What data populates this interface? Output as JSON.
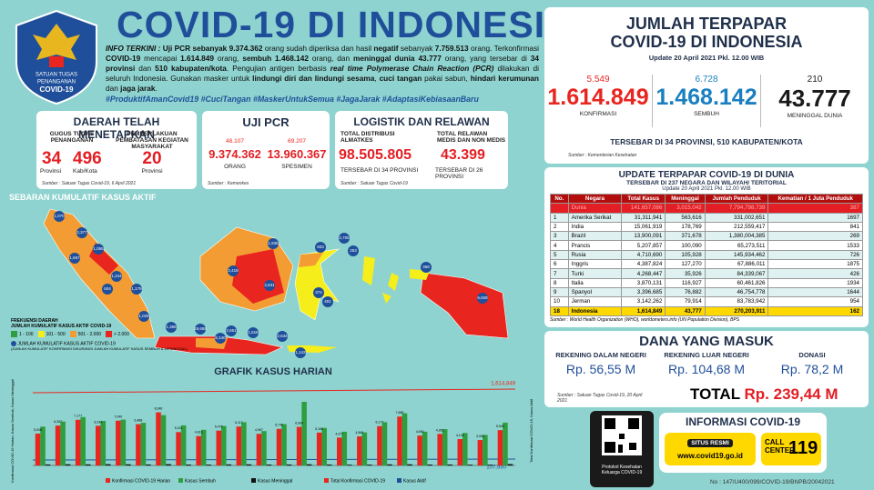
{
  "header": {
    "title": "COVID-19 DI INDONESIA",
    "logo_text": [
      "SATUAN TUGAS",
      "PENANGANAN",
      "COVID-19"
    ]
  },
  "info": {
    "segments": [
      {
        "text": "INFO TERKINI : ",
        "style": "it"
      },
      {
        "text": "Uji PCR sebanyak ",
        "style": "bold"
      },
      {
        "text": "9.374.362",
        "style": "bold"
      },
      {
        "text": " orang sudah diperiksa dan hasil ",
        "style": ""
      },
      {
        "text": "negatif",
        "style": "bold"
      },
      {
        "text": " sebanyak ",
        "style": ""
      },
      {
        "text": "7.759.513",
        "style": "bold"
      },
      {
        "text": " orang. Terkonfirmasi ",
        "style": ""
      },
      {
        "text": "COVID-19",
        "style": "bold"
      },
      {
        "text": " mencapai ",
        "style": ""
      },
      {
        "text": "1.614.849",
        "style": "bold"
      },
      {
        "text": " orang, ",
        "style": ""
      },
      {
        "text": "sembuh 1.468.142",
        "style": "bold"
      },
      {
        "text": " orang, dan ",
        "style": ""
      },
      {
        "text": "meninggal dunia 43.777",
        "style": "bold"
      },
      {
        "text": " orang, yang tersebar di ",
        "style": ""
      },
      {
        "text": "34 provinsi",
        "style": "bold"
      },
      {
        "text": " dan ",
        "style": ""
      },
      {
        "text": "510 kabupaten/kota",
        "style": "bold"
      },
      {
        "text": ". Pengujian antigen berbasis ",
        "style": ""
      },
      {
        "text": "real time Polymerase Chain Reaction (PCR)",
        "style": "it"
      },
      {
        "text": " dilakukan di seluruh Indonesia. Gunakan masker untuk ",
        "style": ""
      },
      {
        "text": "lindungi diri dan lindungi sesama",
        "style": "bold"
      },
      {
        "text": ", ",
        "style": ""
      },
      {
        "text": "cuci tangan",
        "style": "bold"
      },
      {
        "text": " pakai sabun, ",
        "style": ""
      },
      {
        "text": "hindari kerumunan",
        "style": "bold"
      },
      {
        "text": " dan ",
        "style": ""
      },
      {
        "text": "jaga jarak",
        "style": "bold"
      },
      {
        "text": ".",
        "style": ""
      }
    ]
  },
  "hashtags": "#ProduktifAmanCovid19 #CuciTangan #MaskerUntukSemua #JagaJarak #AdaptasiKebiasaanBaru",
  "daerah": {
    "title": "DAERAH TELAH MENETAPKAN",
    "gugus_label": "GUGUS TUGAS PENANGANAN",
    "gugus_prov": "34",
    "gugus_prov_unit": "Provinsi",
    "gugus_kab": "496",
    "gugus_kab_unit": "Kab/Kota",
    "ppkm_label": "PEMBERLAKUAN PEMBATASAN KEGIATAN MASYARAKAT",
    "ppkm_value": "20",
    "ppkm_unit": "Provinsi",
    "source": "Sumber : Satuan Tugas Covid-19, 6 April 2021"
  },
  "pcr": {
    "title": "UJI PCR",
    "items": [
      {
        "delta": "48.107",
        "value": "9.374.362",
        "label": "ORANG"
      },
      {
        "delta": "69.207",
        "value": "13.960.367",
        "label": "SPESIMEN"
      }
    ],
    "source": "Sumber : Kemenkes"
  },
  "logistik": {
    "title": "LOGISTIK DAN RELAWAN",
    "items": [
      {
        "label": "TOTAL DISTRIBUSI ALMATKES",
        "value": "98.505.805",
        "note": "TERSEBAR DI 34 PROVINSI"
      },
      {
        "label": "TOTAL RELAWAN MEDIS DAN NON MEDIS",
        "value": "43.399",
        "note": "TERSEBAR DI 26 PROVINSI"
      }
    ],
    "source": "Sumber : Satuan Tugas Covid-19"
  },
  "map": {
    "title": "SEBARAN KUMULATIF KASUS AKTIF",
    "labels": [
      "1,070",
      "2,377",
      "1,055",
      "1,667",
      "1,244",
      "504",
      "1,179",
      "1,029",
      "1,366",
      "19,655",
      "6,140",
      "2,651",
      "1,616",
      "2,634",
      "1,143",
      "1,935",
      "2,418",
      "2,631",
      "603",
      "2,705",
      "253",
      "368",
      "6,928",
      "401",
      "374"
    ],
    "legend_title": "FREKUENSI DAERAH",
    "legend_subtitle": "JUMLAH KUMULATIF KASUS AKTIF COVID-19",
    "legend": [
      {
        "label": "1 - 100",
        "color": "#2e9e3e"
      },
      {
        "label": "101 - 500",
        "color": "#f6ee1b"
      },
      {
        "label": "501 - 2.000",
        "color": "#f39c34"
      },
      {
        "label": "> 2.000",
        "color": "#e8251f"
      }
    ],
    "dot_label": "JUMLAH KUMULATIF KASUS AKTIF COVID-19",
    "dot_note": "(JUMLAH KUMULATIF KONFIRMASI DIKURANGI JUMLAH KUMULATIF KASUS SEMBUH & MENINGGAL)"
  },
  "daily_chart": {
    "type": "bar",
    "title": "GRAFIK KASUS HARIAN",
    "y_label": "Konfirmasi COVID-19 Harian, Kasus Sembuh, Kasus Meninggal",
    "y2_label": "Total Konfirmasi COVID-19, Kasus Aktif",
    "total_label": "1,614,849",
    "active_label": "107,930",
    "series": [
      {
        "name": "Konfirmasi COVID-19 Harian",
        "color": "#e8251f",
        "values": [
          5008,
          6267,
          7177,
          6234,
          7040,
          6488,
          8346,
          5241,
          4616,
          5475,
          6117,
          4967,
          5749,
          6064,
          5166,
          4377,
          4569,
          6177,
          7685,
          4690,
          4952,
          4143,
          3990,
          5549
        ],
        "value_labels": [
          "5,008",
          "6,267",
          "7,177",
          "6,234",
          "7,040",
          "6,488",
          "8,346",
          "5,241",
          "4,616",
          "5,475",
          "6,117",
          "4,967",
          "5,749",
          "6,064",
          "5,166",
          "4,377",
          "4,569",
          "6,177",
          "7,685",
          "4,690",
          "4,952",
          "4,143",
          "3,990",
          "5,549"
        ]
      },
      {
        "name": "Kasus Sembuh",
        "color": "#2e9e3e",
        "values": [
          6100,
          6900,
          7600,
          7000,
          7200,
          6700,
          7900,
          6300,
          5600,
          6200,
          6800,
          5400,
          6500,
          10000,
          5900,
          5300,
          5200,
          6800,
          8200,
          5300,
          5700,
          5100,
          4800,
          6728
        ]
      },
      {
        "name": "Kasus Meninggal",
        "color": "#111111",
        "values": [
          160,
          180,
          170,
          190,
          180,
          150,
          200,
          140,
          130,
          160,
          170,
          140,
          150,
          180,
          140,
          120,
          130,
          170,
          180,
          140,
          150,
          120,
          110,
          210
        ]
      },
      {
        "name": "Total Konfirmasi COVID-19",
        "color": "#e8251f"
      },
      {
        "name": "Kasus Aktif",
        "color": "#1f4f9a"
      }
    ]
  },
  "jumlah": {
    "title": [
      "JUMLAH TERPAPAR",
      "COVID-19 DI INDONESIA"
    ],
    "update": "Update 20 April 2021 Pkl. 12.00 WIB",
    "items": [
      {
        "delta": "5.549",
        "value": "1.614.849",
        "label": "KONFIRMASI",
        "color": "#e8251f"
      },
      {
        "delta": "6.728",
        "value": "1.468.142",
        "label": "SEMBUH",
        "color": "#1a7fc1"
      },
      {
        "delta": "210",
        "value": "43.777",
        "label": "MENINGGAL DUNIA",
        "color": "#1a1a1a"
      }
    ],
    "spread": "TERSEBAR DI 34 PROVINSI, 510 KABUPATEN/KOTA",
    "source": "Sumber : Kementerian Kesehatan"
  },
  "world": {
    "title": "UPDATE TERPAPAR COVID-19 DI DUNIA",
    "subtitle": "TERSEBAR DI 237 NEGARA DAN WILAYAH/ TERITORIAL",
    "update": "Update 20 April 2021 Pkl. 12.00 WIB",
    "headers": [
      "No.",
      "Negara",
      "Total Kasus",
      "Meninggal",
      "Jumlah Penduduk",
      "Kematian / 1 Juta Penduduk"
    ],
    "rows": [
      [
        "",
        "Dunia",
        "141,657,086",
        "3,015,042",
        "7,794,798,739",
        "387"
      ],
      [
        "1",
        "Amerika Serikat",
        "31,311,941",
        "563,616",
        "331,002,651",
        "1697"
      ],
      [
        "2",
        "India",
        "15,061,919",
        "178,769",
        "212,559,417",
        "841"
      ],
      [
        "3",
        "Brazil",
        "13,900,091",
        "371,678",
        "1,380,004,385",
        "269"
      ],
      [
        "4",
        "Prancis",
        "5,207,857",
        "100,090",
        "65,273,511",
        "1533"
      ],
      [
        "5",
        "Rusia",
        "4,710,690",
        "105,928",
        "145,934,462",
        "726"
      ],
      [
        "6",
        "Inggris",
        "4,387,824",
        "127,270",
        "67,886,011",
        "1875"
      ],
      [
        "7",
        "Turki",
        "4,268,447",
        "35,926",
        "84,339,067",
        "426"
      ],
      [
        "8",
        "Italia",
        "3,870,131",
        "116,927",
        "60,461,826",
        "1934"
      ],
      [
        "9",
        "Spanyol",
        "3,396,685",
        "76,882",
        "46,754,778",
        "1644"
      ],
      [
        "10",
        "Jerman",
        "3,142,262",
        "79,914",
        "83,783,942",
        "954"
      ],
      [
        "18",
        "Indonesia",
        "1,614,849",
        "43,777",
        "270,203,911",
        "162"
      ]
    ],
    "source": "Sumber : World Health Organization (WHO), worldometers.info (UN Population Division), BPS"
  },
  "dana": {
    "title": "DANA YANG MASUK",
    "items": [
      {
        "label": "REKENING DALAM NEGERI",
        "value": "Rp. 56,55 M"
      },
      {
        "label": "REKENING LUAR NEGERI",
        "value": "Rp. 104,68 M"
      },
      {
        "label": "DONASI",
        "value": "Rp. 78,2 M"
      }
    ],
    "total_label": "TOTAL",
    "total_value": "Rp. 239,44 M",
    "source": "Sumber : Satuan Tugas Covid-19, 20 April 2021"
  },
  "contact": {
    "title": "INFORMASI COVID-19",
    "qr_caption": "Protokol Kesehatan Keluarga COVID-19",
    "site_label": "SITUS RESMI",
    "site": "www.covid19.go.id",
    "call": "CALL CENTER",
    "call_number": "119"
  },
  "footer": "No : 147/U400/099/COVID-19/BNPB/20042021"
}
